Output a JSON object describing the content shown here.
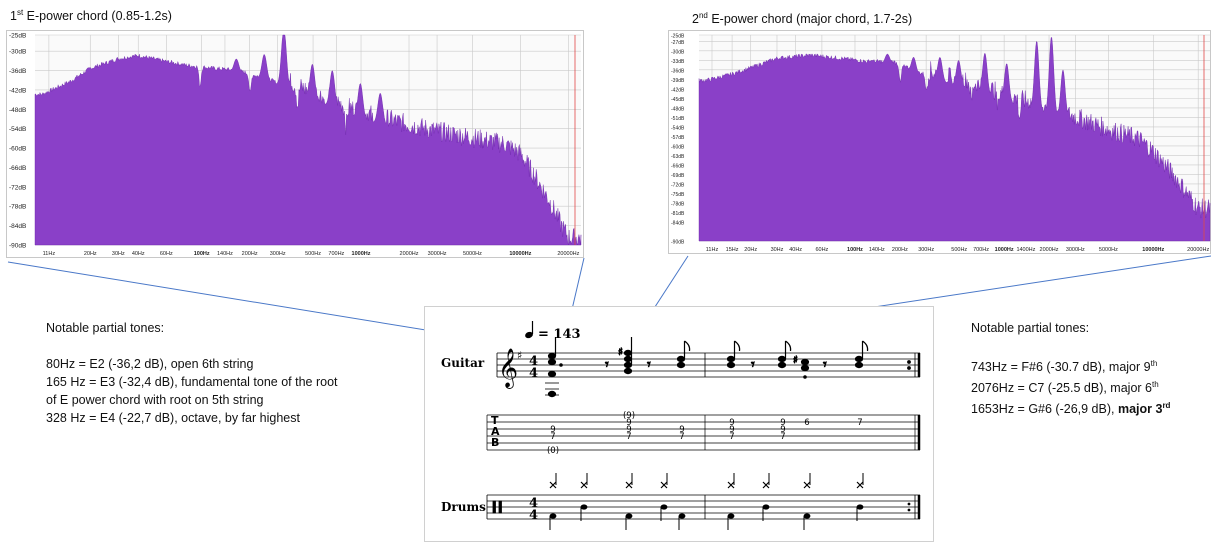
{
  "chart_data": [
    {
      "type": "area",
      "title": "1st E-power chord (0.85-1.2s)",
      "title_super": "st",
      "title_rest": " E-power chord (0.85-1.2s)",
      "title_prefix": "1",
      "x_scale": "log",
      "xlim": [
        9,
        24000
      ],
      "ylim": [
        -90,
        -25
      ],
      "grid": true,
      "color": "#8a40c8",
      "y_ticks": [
        "-25dB",
        "-30dB",
        "-36dB",
        "-42dB",
        "-48dB",
        "-54dB",
        "-60dB",
        "-66dB",
        "-72dB",
        "-78dB",
        "-84dB",
        "-90dB"
      ],
      "y_tick_values": [
        -25,
        -30,
        -36,
        -42,
        -48,
        -54,
        -60,
        -66,
        -72,
        -78,
        -84,
        -90
      ],
      "x_ticks": [
        "11Hz",
        "20Hz",
        "30Hz",
        "40Hz",
        "60Hz",
        "100Hz",
        "140Hz",
        "200Hz",
        "300Hz",
        "500Hz",
        "700Hz",
        "1000Hz",
        "2000Hz",
        "3000Hz",
        "5000Hz",
        "10000Hz",
        "20000Hz"
      ],
      "x_tick_values": [
        11,
        20,
        30,
        40,
        60,
        100,
        140,
        200,
        300,
        500,
        700,
        1000,
        2000,
        3000,
        5000,
        10000,
        20000
      ],
      "x_bold": [
        "100Hz",
        "1000Hz",
        "10000Hz"
      ],
      "envelope": {
        "x": [
          10,
          15,
          20,
          30,
          40,
          55,
          80,
          120,
          165,
          250,
          328,
          450,
          700,
          1000,
          2000,
          3000,
          5000,
          8000,
          10000,
          12000,
          15000,
          18000,
          20000
        ],
        "y": [
          -44,
          -40,
          -36,
          -33,
          -32,
          -33.5,
          -35,
          -36,
          -36.5,
          -39,
          -41,
          -44,
          -48,
          -51,
          -55,
          -57,
          -59,
          -61,
          -64,
          -70,
          -78,
          -86,
          -90
        ]
      },
      "peaks": [
        {
          "x": 80,
          "y": -36.2
        },
        {
          "x": 165,
          "y": -32.4
        },
        {
          "x": 247,
          "y": -31
        },
        {
          "x": 328,
          "y": -22.7
        },
        {
          "x": 495,
          "y": -34
        },
        {
          "x": 660,
          "y": -36
        },
        {
          "x": 990,
          "y": -40
        },
        {
          "x": 1320,
          "y": -43
        }
      ]
    },
    {
      "type": "area",
      "title": "2nd E-power chord (major chord, 1.7-2s)",
      "title_super": "nd",
      "title_rest": " E-power chord (major chord, 1.7-2s)",
      "title_prefix": "2",
      "x_scale": "log",
      "xlim": [
        9,
        24000
      ],
      "ylim": [
        -90,
        -25
      ],
      "grid": true,
      "color": "#8a40c8",
      "y_ticks": [
        "-25dB",
        "-27dB",
        "-30dB",
        "-33dB",
        "-36dB",
        "-39dB",
        "-42dB",
        "-45dB",
        "-48dB",
        "-51dB",
        "-54dB",
        "-57dB",
        "-60dB",
        "-63dB",
        "-66dB",
        "-69dB",
        "-72dB",
        "-75dB",
        "-78dB",
        "-81dB",
        "-84dB",
        "-90dB"
      ],
      "y_tick_values": [
        -25,
        -27,
        -30,
        -33,
        -36,
        -39,
        -42,
        -45,
        -48,
        -51,
        -54,
        -57,
        -60,
        -63,
        -66,
        -69,
        -72,
        -75,
        -78,
        -81,
        -84,
        -90
      ],
      "x_ticks": [
        "11Hz",
        "15Hz",
        "20Hz",
        "30Hz",
        "40Hz",
        "60Hz",
        "100Hz",
        "140Hz",
        "200Hz",
        "300Hz",
        "500Hz",
        "700Hz",
        "1000Hz",
        "1400Hz",
        "2000Hz",
        "3000Hz",
        "5000Hz",
        "10000Hz",
        "20000Hz"
      ],
      "x_tick_values": [
        11,
        15,
        20,
        30,
        40,
        60,
        100,
        140,
        200,
        300,
        500,
        700,
        1000,
        1400,
        2000,
        3000,
        5000,
        10000,
        20000
      ],
      "x_bold": [
        "100Hz",
        "1000Hz",
        "10000Hz"
      ],
      "envelope": {
        "x": [
          10,
          15,
          20,
          30,
          50,
          80,
          120,
          180,
          250,
          400,
          700,
          1000,
          2000,
          3000,
          5000,
          8000,
          10000,
          14000,
          20000
        ],
        "y": [
          -40,
          -38,
          -36,
          -33,
          -32,
          -33,
          -34,
          -34,
          -37,
          -40,
          -43,
          -46,
          -50,
          -53,
          -57,
          -60,
          -64,
          -72,
          -82
        ]
      },
      "peaks": [
        {
          "x": 130,
          "y": -33
        },
        {
          "x": 165,
          "y": -31
        },
        {
          "x": 247,
          "y": -32
        },
        {
          "x": 371,
          "y": -32
        },
        {
          "x": 495,
          "y": -33
        },
        {
          "x": 743,
          "y": -30.7
        },
        {
          "x": 1040,
          "y": -34
        },
        {
          "x": 1653,
          "y": -26.9
        },
        {
          "x": 2076,
          "y": -25.5
        },
        {
          "x": 2480,
          "y": -36
        }
      ]
    }
  ],
  "notes_left": {
    "heading": "Notable partial tones:",
    "lines": [
      "80Hz = E2 (-36,2 dB), open 6th string",
      "165 Hz = E3 (-32,4 dB), fundamental tone of the root",
      "of E power chord with root on 5th string",
      "328 Hz = E4 (-22,7 dB), octave, by far highest"
    ]
  },
  "notes_right": {
    "heading": "Notable partial tones:",
    "lines": [
      {
        "text": "743Hz = F#6 (-30.7 dB), major 9",
        "sup": "th",
        "bold": ""
      },
      {
        "text": "2076Hz = C7 (-25.5 dB), major 6",
        "sup": "th",
        "bold": ""
      },
      {
        "text": "1653Hz = G#6 (-26,9 dB), ",
        "sup": "",
        "bold": "major 3",
        "bold_sup": "rd"
      }
    ]
  },
  "score": {
    "tempo_text": "= 143",
    "guitar_label": "Guitar",
    "drums_label": "Drums",
    "time_signature": [
      "4",
      "4"
    ],
    "tab_letters": [
      "T",
      "A",
      "B"
    ],
    "tab_measure1": [
      {
        "col": 0,
        "frets": [
          "9",
          "7",
          "(0)"
        ]
      },
      {
        "col": 1,
        "frets": [
          "(9)",
          "9",
          "9",
          "7"
        ]
      },
      {
        "col": 2,
        "frets": [
          "9",
          "7"
        ]
      }
    ],
    "tab_measure2": [
      {
        "col": 0,
        "frets": [
          "9",
          "9",
          "7"
        ]
      },
      {
        "col": 1,
        "frets": [
          "9",
          "9",
          "7"
        ]
      },
      {
        "col": 2,
        "frets": [
          "6"
        ]
      },
      {
        "col": 3,
        "frets": [
          "7"
        ]
      }
    ]
  },
  "colors": {
    "spectrum": "#8a40c8",
    "spectrum_dark": "#6a22a8",
    "leader": "#4a78c8",
    "grid": "#c9c9c9"
  }
}
